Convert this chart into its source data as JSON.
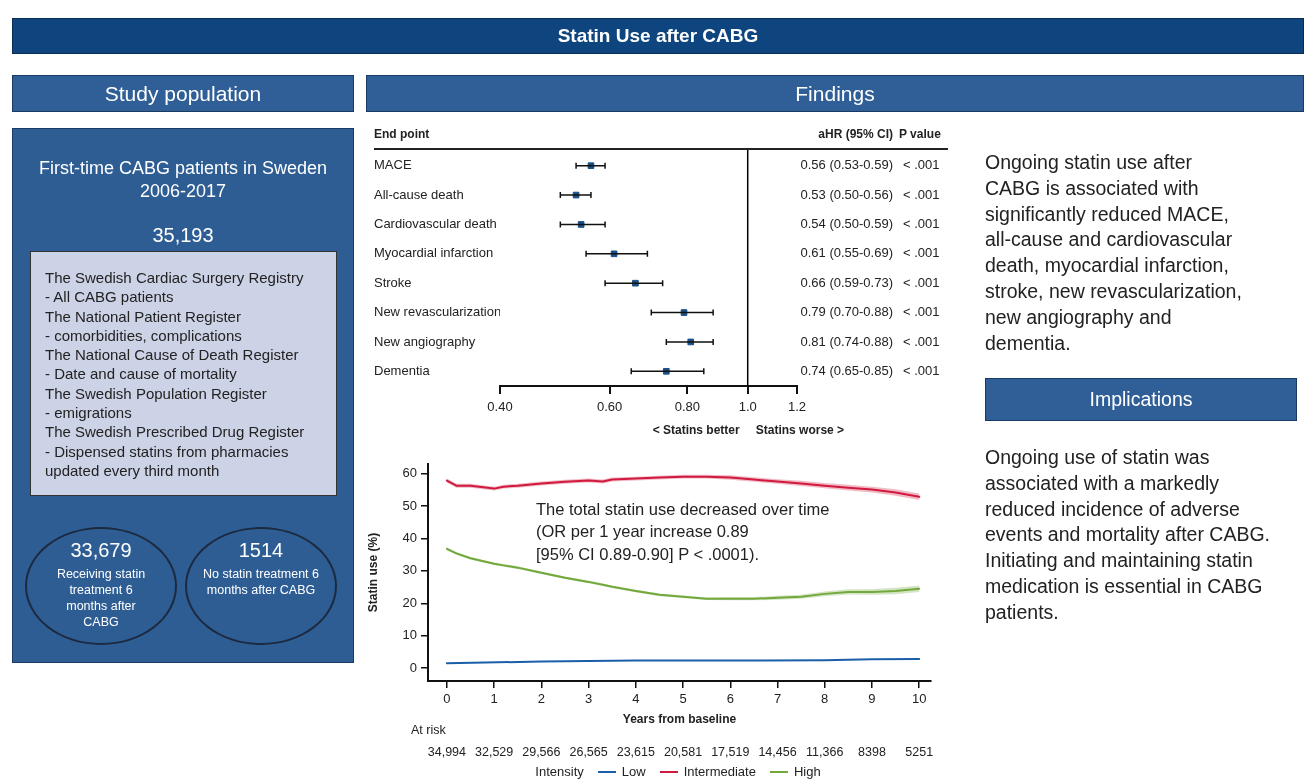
{
  "chart_data": [
    {
      "type": "other",
      "title": "Statin Use after CABG"
    },
    {
      "type": "other",
      "title": "Study population",
      "annotations": [
        "First-time CABG patients in Sweden 2006-2017",
        "35,193",
        "The Swedish Cardiac Surgery Registry",
        "- All CABG patients",
        "The National Patient Register",
        "- comorbidities, complications",
        "The National Cause of Death Register",
        "- Date and cause of mortality",
        "The Swedish Population Register",
        "- emigrations",
        "The Swedish Prescribed Drug Register",
        "- Dispensed statins from pharmacies updated every third month",
        "33,679",
        "Receiving statin treatment 6 months after CABG",
        "1514",
        "No statin treatment 6 months after CABG"
      ]
    },
    {
      "type": "scatter",
      "title": "Findings",
      "orientation": "horizontal",
      "log": "x",
      "marker": "square",
      "color": "#1a4f86",
      "categories": [
        "MACE",
        "All-cause death",
        "Cardiovascular death",
        "Myocardial infarction",
        "Stroke",
        "New revascularization",
        "New angiography",
        "Dementia"
      ],
      "values": [
        0.56,
        0.53,
        0.54,
        0.61,
        0.66,
        0.79,
        0.81,
        0.74
      ],
      "errors": [
        [
          0.53,
          0.59
        ],
        [
          0.5,
          0.56
        ],
        [
          0.5,
          0.59
        ],
        [
          0.55,
          0.69
        ],
        [
          0.59,
          0.73
        ],
        [
          0.7,
          0.88
        ],
        [
          0.74,
          0.88
        ],
        [
          0.65,
          0.85
        ]
      ],
      "value_labels": [
        "0.56 (0.53-0.59)",
        "0.53 (0.50-0.56)",
        "0.54 (0.50-0.59)",
        "0.61 (0.55-0.69)",
        "0.66 (0.59-0.73)",
        "0.79 (0.70-0.88)",
        "0.81 (0.74-0.88)",
        "0.74 (0.65-0.85)"
      ],
      "xlim": [
        0.4,
        1.2
      ],
      "xticks": [
        {
          "value": 0.4,
          "label": "0.40"
        },
        {
          "value": 0.6,
          "label": "0.60"
        },
        {
          "value": 0.8,
          "label": "0.80"
        },
        {
          "value": 1.0,
          "label": "1.0"
        },
        {
          "value": 1.2,
          "label": "1.2"
        }
      ],
      "ref_lines": [
        {
          "axis": "x",
          "value": 1.0,
          "color": "#000000"
        }
      ],
      "annotations": [
        "End point",
        "aHR (95% CI)",
        "P value",
        "< Statins better",
        "Statins worse >",
        "< .001",
        "< .001",
        "< .001",
        "< .001",
        "< .001",
        "< .001",
        "< .001",
        "< .001"
      ]
    },
    {
      "type": "line",
      "xlabel": "Years from baseline",
      "ylabel": "Statin use (%)",
      "legend": "bottom",
      "legend_title": "Intensity",
      "x": [
        0,
        0.2,
        0.5,
        1,
        1.2,
        1.5,
        2,
        2.5,
        3,
        3.3,
        3.5,
        4,
        4.5,
        5,
        5.5,
        6,
        6.5,
        7,
        7.5,
        8,
        8.5,
        9,
        9.5,
        10
      ],
      "xlim": [
        -0.4,
        10.25
      ],
      "xticks": [
        0,
        1,
        2,
        3,
        4,
        5,
        6,
        7,
        8,
        9,
        10
      ],
      "ylim": [
        -4,
        63
      ],
      "yticks": [
        0,
        10,
        20,
        30,
        40,
        50,
        60
      ],
      "series": [
        {
          "name": "Low",
          "color": "#1b5ea8",
          "x": [
            0,
            2,
            4,
            6,
            8,
            9,
            10
          ],
          "values": [
            1.5,
            2.0,
            2.3,
            2.3,
            2.4,
            2.7,
            2.8
          ]
        },
        {
          "name": "Intermediate",
          "color": "#d11a3f",
          "values": [
            57.9,
            56.3,
            56.3,
            55.4,
            56.0,
            56.3,
            57.0,
            57.5,
            57.9,
            57.6,
            58.2,
            58.5,
            58.8,
            59.1,
            59.1,
            58.8,
            58.2,
            57.6,
            57.0,
            56.3,
            55.7,
            55.1,
            54.2,
            52.9
          ],
          "lower": [
            57.3,
            55.7,
            55.7,
            54.8,
            55.4,
            55.7,
            56.4,
            56.9,
            57.3,
            57.0,
            57.6,
            57.9,
            58.2,
            58.5,
            58.5,
            58.1,
            57.5,
            56.9,
            56.2,
            55.5,
            54.8,
            54.2,
            53.2,
            51.9
          ],
          "upper": [
            58.5,
            56.9,
            56.9,
            56.0,
            56.6,
            56.9,
            57.6,
            58.1,
            58.5,
            58.2,
            58.8,
            59.1,
            59.4,
            59.7,
            59.7,
            59.5,
            58.9,
            58.3,
            57.8,
            57.1,
            56.6,
            56.0,
            55.2,
            53.9
          ]
        },
        {
          "name": "High",
          "color": "#72a83c",
          "values": [
            36.8,
            35.4,
            33.9,
            32.2,
            31.7,
            31.0,
            29.4,
            27.9,
            26.6,
            25.7,
            25.1,
            23.8,
            22.6,
            22.0,
            21.4,
            21.4,
            21.4,
            21.7,
            22.0,
            22.9,
            23.5,
            23.5,
            23.8,
            24.5
          ],
          "lower": [
            36.4,
            35.0,
            33.5,
            31.8,
            31.3,
            30.6,
            29.0,
            27.5,
            26.2,
            25.3,
            24.7,
            23.4,
            22.2,
            21.6,
            21.0,
            20.9,
            20.9,
            21.1,
            21.4,
            22.2,
            22.7,
            22.6,
            22.8,
            23.5
          ],
          "upper": [
            37.2,
            35.8,
            34.3,
            32.6,
            32.1,
            31.4,
            29.8,
            28.3,
            27.0,
            26.1,
            25.5,
            24.2,
            23.0,
            22.4,
            21.8,
            21.9,
            21.9,
            22.3,
            22.6,
            23.6,
            24.3,
            24.4,
            24.8,
            25.5
          ]
        }
      ],
      "annotations": [
        "The total statin use decreased over time\n(OR per 1 year increase 0.89\n[95% CI 0.89-0.90] P < .0001).",
        "At risk",
        "34,994",
        "32,529",
        "29,566",
        "26,565",
        "23,615",
        "20,581",
        "17,519",
        "14,456",
        "11,366",
        "8398",
        "5251"
      ]
    },
    {
      "type": "other",
      "annotations": [
        "Ongoing statin use after CABG is associated with significantly reduced MACE, all-cause and cardiovascular death, myocardial infarction, stroke, new revascularization, new angiography and dementia."
      ]
    },
    {
      "type": "other",
      "title": "Implications",
      "annotations": [
        "Ongoing use of statin was associated with a markedly reduced incidence of adverse events and mortality after CABG. Initiating and maintaining statin medication is essential in CABG patients."
      ]
    }
  ]
}
